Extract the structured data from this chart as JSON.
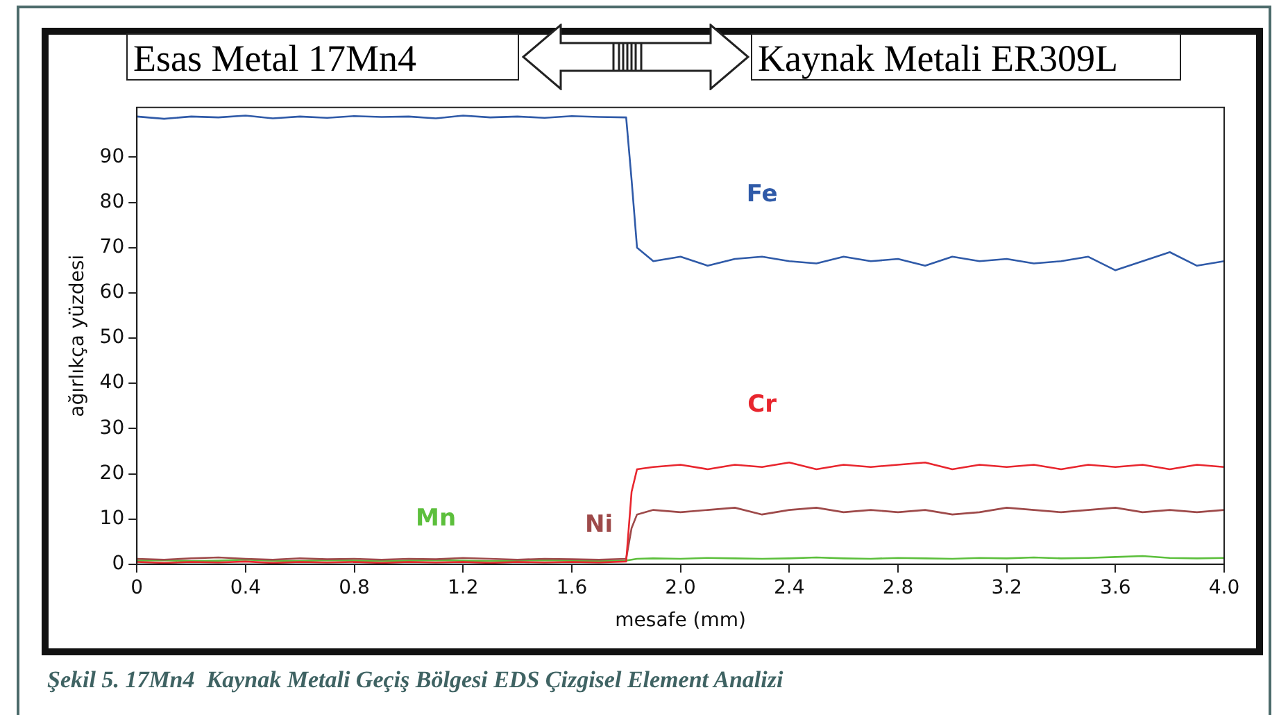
{
  "chart_data": {
    "type": "line",
    "xlabel": "mesafe (mm)",
    "ylabel": "ağırlıkça yüzdesi",
    "annotations": [
      "Esas Metal 17Mn4",
      "Kaynak Metali ER309L",
      "Şekil 5. 17Mn4  Kaynak Metali Geçiş Bölgesi EDS Çizgisel Element Analizi"
    ],
    "x": [
      0,
      0.1,
      0.2,
      0.3,
      0.4,
      0.5,
      0.6,
      0.7,
      0.8,
      0.9,
      1.0,
      1.1,
      1.2,
      1.3,
      1.4,
      1.5,
      1.6,
      1.7,
      1.8,
      1.82,
      1.84,
      1.9,
      2.0,
      2.1,
      2.2,
      2.3,
      2.4,
      2.5,
      2.6,
      2.7,
      2.8,
      2.9,
      3.0,
      3.1,
      3.2,
      3.3,
      3.4,
      3.5,
      3.6,
      3.7,
      3.8,
      3.9,
      4.0
    ],
    "series": [
      {
        "name": "Fe",
        "color": "#2f5aa8",
        "values": [
          99,
          98.5,
          99,
          98.8,
          99.2,
          98.6,
          99,
          98.7,
          99.1,
          98.9,
          99,
          98.6,
          99.2,
          98.8,
          99,
          98.7,
          99.1,
          98.9,
          98.8,
          85,
          70,
          67,
          68,
          66,
          67.5,
          68,
          67,
          66.5,
          68,
          67,
          67.5,
          66,
          68,
          67,
          67.5,
          66.5,
          67,
          68,
          65,
          67,
          69,
          66,
          67
        ]
      },
      {
        "name": "Cr",
        "color": "#e8262e",
        "values": [
          0.5,
          0.3,
          0.5,
          0.4,
          0.6,
          0.3,
          0.5,
          0.4,
          0.5,
          0.3,
          0.5,
          0.4,
          0.5,
          0.3,
          0.5,
          0.4,
          0.5,
          0.4,
          0.6,
          16,
          21,
          21.5,
          22,
          21,
          22,
          21.5,
          22.5,
          21,
          22,
          21.5,
          22,
          22.5,
          21,
          22,
          21.5,
          22,
          21,
          22,
          21.5,
          22,
          21,
          22,
          21.5
        ]
      },
      {
        "name": "Ni",
        "color": "#9e4a4a",
        "values": [
          1.2,
          1,
          1.3,
          1.5,
          1.2,
          1,
          1.3,
          1.1,
          1.2,
          1,
          1.2,
          1.1,
          1.4,
          1.2,
          1,
          1.2,
          1.1,
          1,
          1.2,
          8,
          11,
          12,
          11.5,
          12,
          12.5,
          11,
          12,
          12.5,
          11.5,
          12,
          11.5,
          12,
          11,
          11.5,
          12.5,
          12,
          11.5,
          12,
          12.5,
          11.5,
          12,
          11.5,
          12
        ]
      },
      {
        "name": "Mn",
        "color": "#5cbf3c",
        "values": [
          0.8,
          0.9,
          0.7,
          0.8,
          1,
          0.8,
          0.7,
          0.9,
          0.8,
          0.7,
          0.8,
          0.9,
          0.8,
          0.7,
          0.8,
          0.9,
          0.8,
          0.7,
          0.8,
          1,
          1.2,
          1.3,
          1.2,
          1.4,
          1.3,
          1.2,
          1.3,
          1.5,
          1.3,
          1.2,
          1.4,
          1.3,
          1.2,
          1.4,
          1.3,
          1.5,
          1.3,
          1.4,
          1.6,
          1.8,
          1.4,
          1.3,
          1.4
        ]
      }
    ],
    "xlim": [
      0,
      4.0
    ],
    "xticks": [
      0,
      0.4,
      0.8,
      1.2,
      1.6,
      {
        "value": 2,
        "label": "2.0"
      },
      2.4,
      2.8,
      3.2,
      3.6,
      {
        "value": 4,
        "label": "4.0"
      }
    ],
    "ylim": [
      0,
      101
    ],
    "yticks": [
      0,
      10,
      20,
      30,
      40,
      50,
      60,
      70,
      80,
      90
    ],
    "grid": false,
    "legend": false,
    "marker": "none",
    "line_style": "solid"
  }
}
